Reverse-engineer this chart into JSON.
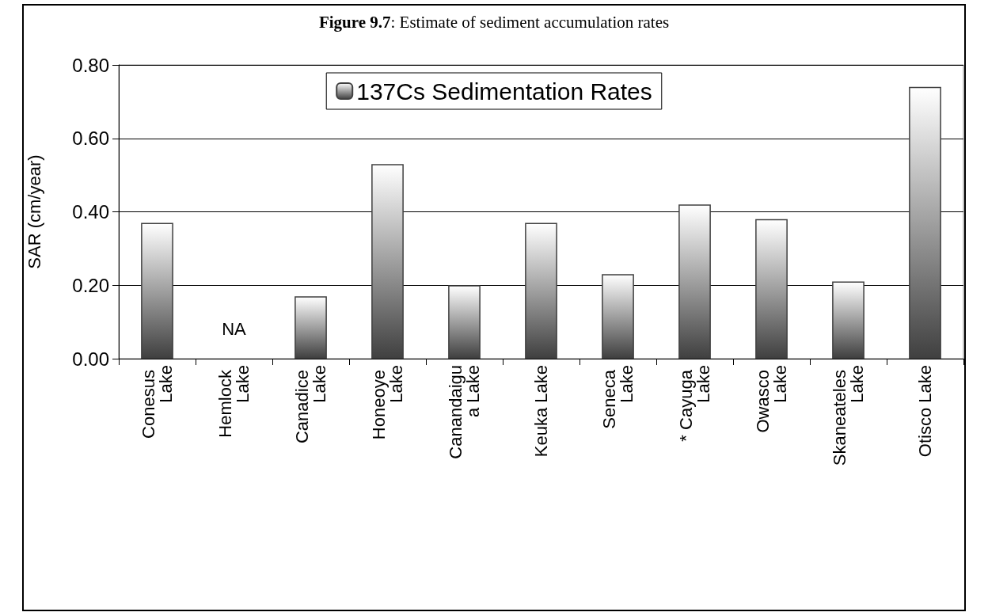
{
  "chart_data": {
    "type": "bar",
    "title": "Figure 9.7: Estimate of sediment accumulation rates",
    "ylabel": "SAR (cm/year)",
    "categories": [
      "Conesus Lake",
      "Hemlock Lake",
      "Canadice Lake",
      "Honeoye Lake",
      "Canandaigua Lake",
      "Keuka Lake",
      "Seneca Lake",
      "* Cayuga Lake",
      "Owasco Lake",
      "Skaneateles Lake",
      "Otisco Lake"
    ],
    "series": [
      {
        "name": "137Cs Sedimentation Rates",
        "color": "#404040",
        "values": [
          0.37,
          null,
          0.17,
          0.53,
          0.2,
          0.37,
          0.23,
          0.42,
          0.38,
          0.21,
          0.74
        ]
      }
    ],
    "annotations": [
      "NA"
    ],
    "ylim": [
      0,
      0.8
    ],
    "yticks": [
      {
        "value": 0,
        "label": "0.00"
      },
      {
        "value": 0.2,
        "label": "0.20"
      },
      {
        "value": 0.4,
        "label": "0.40"
      },
      {
        "value": 0.6,
        "label": "0.60"
      },
      {
        "value": 0.8,
        "label": "0.80"
      }
    ],
    "grid": "y",
    "legend": "top"
  }
}
